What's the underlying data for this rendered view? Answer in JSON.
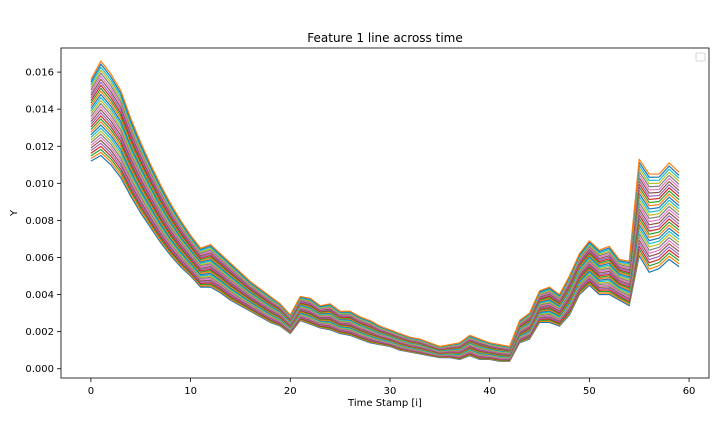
{
  "chart_data": {
    "type": "line",
    "title": "Feature 1 line across time",
    "xlabel": "Time Stamp [i]",
    "ylabel": "Y",
    "xlim": [
      -3,
      62
    ],
    "ylim": [
      -0.0005,
      0.0173
    ],
    "xticks": [
      0,
      10,
      20,
      30,
      40,
      50,
      60
    ],
    "yticks": [
      0.0,
      0.002,
      0.004,
      0.006,
      0.008,
      0.01,
      0.012,
      0.014,
      0.016
    ],
    "ytick_labels": [
      "0.000",
      "0.002",
      "0.004",
      "0.006",
      "0.008",
      "0.010",
      "0.012",
      "0.014",
      "0.016"
    ],
    "grid": false,
    "legend": "top-right",
    "legend_entries": [],
    "series_count": 32,
    "series_colors": [
      "#1f77b4",
      "#ff7f0e",
      "#2ca02c",
      "#d62728",
      "#9467bd",
      "#8c564b",
      "#e377c2",
      "#7f7f7f",
      "#bcbd22",
      "#17becf"
    ],
    "x": [
      0,
      1,
      2,
      3,
      4,
      5,
      6,
      7,
      8,
      9,
      10,
      11,
      12,
      13,
      14,
      15,
      16,
      17,
      18,
      19,
      20,
      21,
      22,
      23,
      24,
      25,
      26,
      27,
      28,
      29,
      30,
      31,
      32,
      33,
      34,
      35,
      36,
      37,
      38,
      39,
      40,
      41,
      42,
      43,
      44,
      45,
      46,
      47,
      48,
      49,
      50,
      51,
      52,
      53,
      54,
      55,
      56,
      57,
      58,
      59
    ],
    "upper_envelope": [
      0.0156,
      0.0166,
      0.0159,
      0.015,
      0.0135,
      0.0122,
      0.011,
      0.0099,
      0.0089,
      0.008,
      0.0072,
      0.0065,
      0.0067,
      0.0062,
      0.0057,
      0.0052,
      0.0047,
      0.0043,
      0.0039,
      0.0035,
      0.0029,
      0.0039,
      0.0038,
      0.0034,
      0.0035,
      0.0031,
      0.0031,
      0.0028,
      0.0026,
      0.0023,
      0.0021,
      0.0019,
      0.0017,
      0.0016,
      0.0014,
      0.0012,
      0.0013,
      0.0014,
      0.0018,
      0.0016,
      0.0014,
      0.0013,
      0.0012,
      0.0026,
      0.003,
      0.0042,
      0.0044,
      0.004,
      0.005,
      0.0062,
      0.0069,
      0.0064,
      0.0066,
      0.0059,
      0.0058,
      0.0113,
      0.0105,
      0.0105,
      0.0111,
      0.0106
    ],
    "lower_envelope": [
      0.0112,
      0.0115,
      0.011,
      0.0103,
      0.0093,
      0.0084,
      0.0076,
      0.0068,
      0.0061,
      0.0055,
      0.005,
      0.0044,
      0.0044,
      0.0041,
      0.0037,
      0.0034,
      0.0031,
      0.0028,
      0.0025,
      0.0023,
      0.0019,
      0.0026,
      0.0024,
      0.0022,
      0.0021,
      0.0019,
      0.0018,
      0.0016,
      0.0014,
      0.0013,
      0.0012,
      0.001,
      0.0009,
      0.0008,
      0.0007,
      0.0006,
      0.0006,
      0.0005,
      0.0007,
      0.0005,
      0.0005,
      0.0004,
      0.0004,
      0.0014,
      0.0016,
      0.0025,
      0.0025,
      0.0023,
      0.0029,
      0.004,
      0.0045,
      0.004,
      0.004,
      0.0037,
      0.0034,
      0.0061,
      0.0052,
      0.0054,
      0.0059,
      0.0055
    ]
  }
}
